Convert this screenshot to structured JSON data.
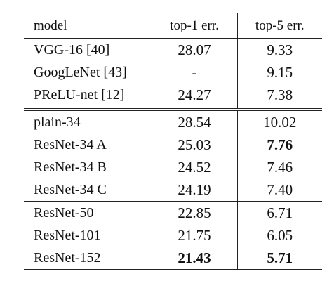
{
  "table": {
    "headers": {
      "model": "model",
      "top1": "top-1 err.",
      "top5": "top-5 err."
    },
    "rows": [
      {
        "model": "VGG-16 [40]",
        "top1": "28.07",
        "top5": "9.33"
      },
      {
        "model": "GoogLeNet [43]",
        "top1": "-",
        "top5": "9.15"
      },
      {
        "model": "PReLU-net [12]",
        "top1": "24.27",
        "top5": "7.38"
      },
      {
        "model": "plain-34",
        "top1": "28.54",
        "top5": "10.02"
      },
      {
        "model": "ResNet-34 A",
        "top1": "25.03",
        "top5": "7.76"
      },
      {
        "model": "ResNet-34 B",
        "top1": "24.52",
        "top5": "7.46"
      },
      {
        "model": "ResNet-34 C",
        "top1": "24.19",
        "top5": "7.40"
      },
      {
        "model": "ResNet-50",
        "top1": "22.85",
        "top5": "6.71"
      },
      {
        "model": "ResNet-101",
        "top1": "21.75",
        "top5": "6.05"
      },
      {
        "model": "ResNet-152",
        "top1": "21.43",
        "top5": "5.71"
      }
    ]
  }
}
